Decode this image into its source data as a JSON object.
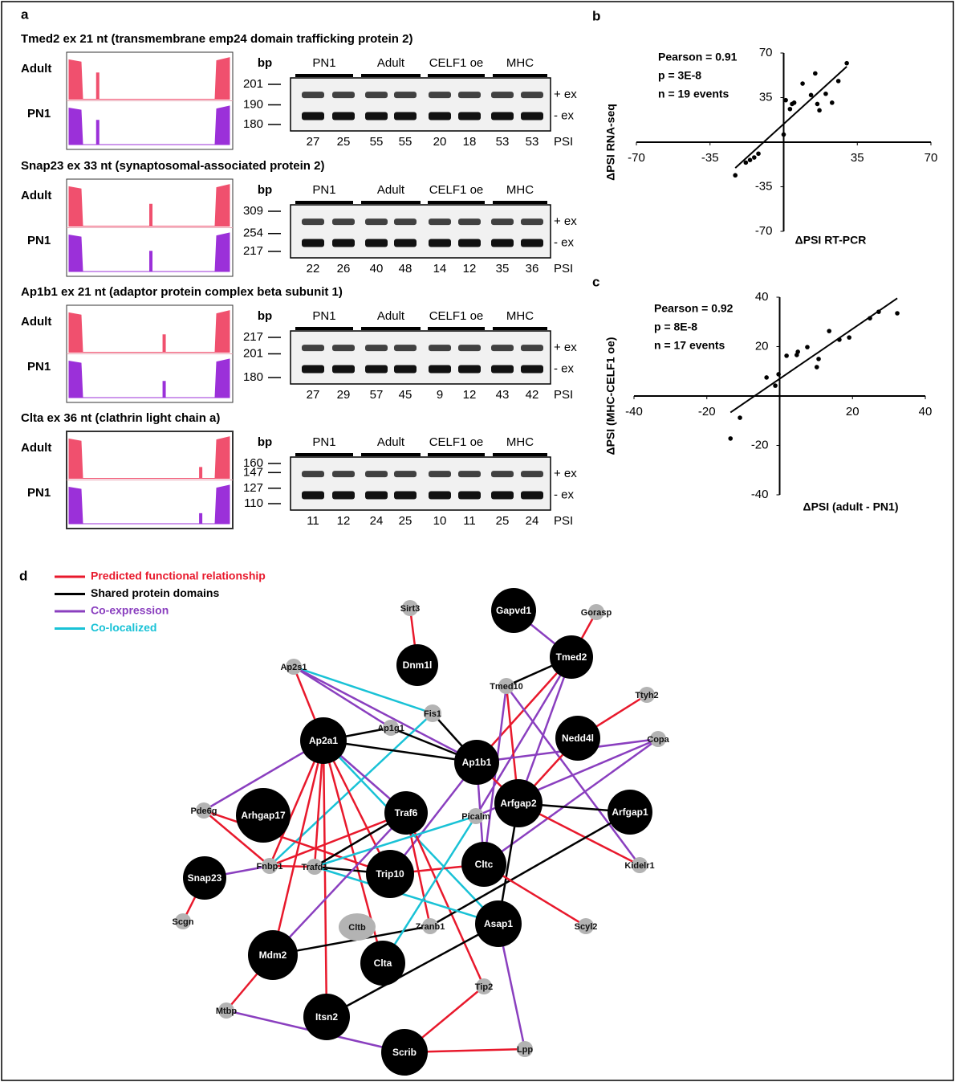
{
  "panel_a": {
    "label": "a",
    "track_labels": [
      "Adult",
      "PN1"
    ],
    "bp_label": "bp",
    "groups": [
      "PN1",
      "Adult",
      "CELF1 oe",
      "MHC"
    ],
    "band_labels": [
      "+ ex",
      "- ex"
    ],
    "psi_label": "PSI",
    "rows": [
      {
        "title": "Tmed2 ex 21 nt (transmembrane emp24 domain trafficking protein 2)",
        "bp": [
          201,
          190,
          180
        ],
        "psi": [
          27,
          25,
          55,
          55,
          20,
          18,
          53,
          53
        ]
      },
      {
        "title": "Snap23 ex 33 nt (synaptosomal-associated protein 2)",
        "bp": [
          309,
          254,
          217
        ],
        "psi": [
          22,
          26,
          40,
          48,
          14,
          12,
          35,
          36
        ]
      },
      {
        "title": "Ap1b1 ex 21 nt (adaptor protein complex beta subunit 1)",
        "bp": [
          217,
          201,
          180
        ],
        "psi": [
          27,
          29,
          57,
          45,
          9,
          12,
          43,
          42
        ]
      },
      {
        "title": "Clta ex 36 nt (clathrin light chain a)",
        "bp": [
          160,
          147,
          127,
          110
        ],
        "psi": [
          11,
          12,
          24,
          25,
          10,
          11,
          25,
          24
        ]
      }
    ]
  },
  "chart_data": [
    {
      "type": "scatter",
      "label": "b",
      "xlabel": "ΔPSI RT-PCR",
      "ylabel": "ΔPSI RNA-seq",
      "annotations": [
        "Pearson = 0.91",
        "p = 3E-8",
        "n = 19 events"
      ],
      "x": [
        -23,
        -18,
        -16,
        -14,
        -12,
        0,
        1,
        3,
        4,
        5,
        9,
        13,
        15,
        16,
        17,
        20,
        23,
        26,
        30
      ],
      "y": [
        -26,
        -16,
        -14,
        -12,
        -9,
        6,
        33,
        26,
        30,
        31,
        46,
        37,
        54,
        30,
        25,
        38,
        31,
        48,
        62
      ],
      "xlim": [
        -70,
        70
      ],
      "ylim": [
        -70,
        70
      ],
      "xticks": [
        -70,
        -35,
        35,
        70
      ],
      "yticks": [
        -70,
        -35,
        35,
        70
      ],
      "color": "#000000",
      "trendline": true
    },
    {
      "type": "scatter",
      "label": "c",
      "xlabel": "ΔPSI (adult - PN1)",
      "ylabel": "ΔPSI (MHC-CELF1 oe)",
      "annotations": [
        "Pearson = 0.92",
        "p = 8E-8",
        "n = 17 events"
      ],
      "x": [
        -13.5,
        -10.9,
        -3.6,
        -1.2,
        -0.3,
        1.9,
        4.7,
        5,
        7.6,
        10.2,
        10.7,
        13.6,
        16.4,
        19.1,
        24.8,
        27.2,
        32.3
      ],
      "y": [
        -17.2,
        -8.8,
        7.5,
        4.2,
        8.8,
        16.3,
        16.6,
        17.9,
        19.8,
        11.7,
        15,
        26.3,
        22.8,
        23.7,
        31.5,
        34.1,
        33.5
      ],
      "xlim": [
        -40,
        40
      ],
      "ylim": [
        -40,
        40
      ],
      "xticks": [
        -40,
        -20,
        20,
        40
      ],
      "yticks": [
        -40,
        -20,
        20,
        40
      ],
      "color": "#000000",
      "trendline": true
    }
  ],
  "panel_d": {
    "label": "d",
    "legend": [
      "Predicted functional relationship",
      "Shared protein domains",
      "Co-expression",
      "Co-localized"
    ],
    "legend_colors": [
      "#e8192c",
      "#000000",
      "#8a3fbf",
      "#19c2d6"
    ],
    "nodes": [
      "Sirt3",
      "Gapvd1",
      "Gorasp",
      "Dnm1l",
      "Tmed2",
      "Ap2s1",
      "Tmed10",
      "Ttyh2",
      "Fis1",
      "Ap1g1",
      "Ap2a1",
      "Nedd4l",
      "Copa",
      "Ap1b1",
      "Arhgap17",
      "Pde6g",
      "Traf6",
      "Picalm",
      "Arfgap2",
      "Arfgap1",
      "Fnbp1",
      "Trafd1",
      "Trip10",
      "Cltc",
      "Kidelr1",
      "Snap23",
      "Scgn",
      "Cltb",
      "Zranb1",
      "Asap1",
      "Scyl2",
      "Mdm2",
      "Clta",
      "Tip2",
      "Mtbp",
      "Itsn2",
      "Scrib",
      "Lpp"
    ],
    "edges": [
      [
        0,
        3,
        0
      ],
      [
        2,
        4,
        0
      ],
      [
        1,
        4,
        2
      ],
      [
        4,
        6,
        1
      ],
      [
        4,
        13,
        0
      ],
      [
        4,
        18,
        2
      ],
      [
        4,
        17,
        2
      ],
      [
        6,
        18,
        0
      ],
      [
        6,
        24,
        2
      ],
      [
        6,
        23,
        2
      ],
      [
        7,
        11,
        0
      ],
      [
        11,
        18,
        0
      ],
      [
        12,
        13,
        2
      ],
      [
        12,
        17,
        2
      ],
      [
        12,
        23,
        2
      ],
      [
        5,
        10,
        0
      ],
      [
        5,
        8,
        3
      ],
      [
        5,
        9,
        2
      ],
      [
        5,
        13,
        2
      ],
      [
        8,
        20,
        3
      ],
      [
        9,
        10,
        1
      ],
      [
        9,
        13,
        1
      ],
      [
        10,
        13,
        1
      ],
      [
        8,
        13,
        1
      ],
      [
        10,
        15,
        2
      ],
      [
        10,
        20,
        0
      ],
      [
        10,
        21,
        0
      ],
      [
        10,
        22,
        0
      ],
      [
        10,
        31,
        0
      ],
      [
        10,
        32,
        0
      ],
      [
        10,
        35,
        0
      ],
      [
        10,
        16,
        2
      ],
      [
        10,
        29,
        3
      ],
      [
        13,
        23,
        2
      ],
      [
        13,
        22,
        2
      ],
      [
        13,
        18,
        0
      ],
      [
        15,
        20,
        0
      ],
      [
        15,
        22,
        0
      ],
      [
        16,
        21,
        1
      ],
      [
        16,
        20,
        0
      ],
      [
        16,
        28,
        0
      ],
      [
        16,
        33,
        0
      ],
      [
        17,
        21,
        3
      ],
      [
        18,
        19,
        1
      ],
      [
        18,
        24,
        0
      ],
      [
        18,
        29,
        1
      ],
      [
        19,
        28,
        1
      ],
      [
        20,
        21,
        0
      ],
      [
        20,
        25,
        2
      ],
      [
        21,
        22,
        1
      ],
      [
        21,
        29,
        3
      ],
      [
        23,
        30,
        0
      ],
      [
        23,
        22,
        0
      ],
      [
        25,
        26,
        0
      ],
      [
        31,
        34,
        0
      ],
      [
        34,
        36,
        2
      ],
      [
        36,
        33,
        0
      ],
      [
        36,
        37,
        0
      ],
      [
        29,
        37,
        2
      ],
      [
        29,
        35,
        1
      ],
      [
        31,
        28,
        1
      ],
      [
        32,
        17,
        3
      ],
      [
        31,
        16,
        2
      ]
    ]
  }
}
